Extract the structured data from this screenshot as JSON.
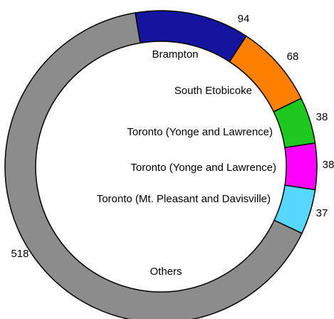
{
  "chart_data": {
    "type": "pie",
    "categories": [
      "Brampton",
      "South Etobicoke",
      "Toronto (Yonge and Lawrence)",
      "Toronto (Yonge and Lawrence)",
      "Toronto (Mt. Pleasant and Davisville)",
      "Others"
    ],
    "values": [
      94,
      68,
      38,
      38,
      37,
      518
    ],
    "colors": [
      "#14149e",
      "#ff8000",
      "#1ec81e",
      "#ff00ff",
      "#55d7ff",
      "#8c8c8c"
    ]
  }
}
